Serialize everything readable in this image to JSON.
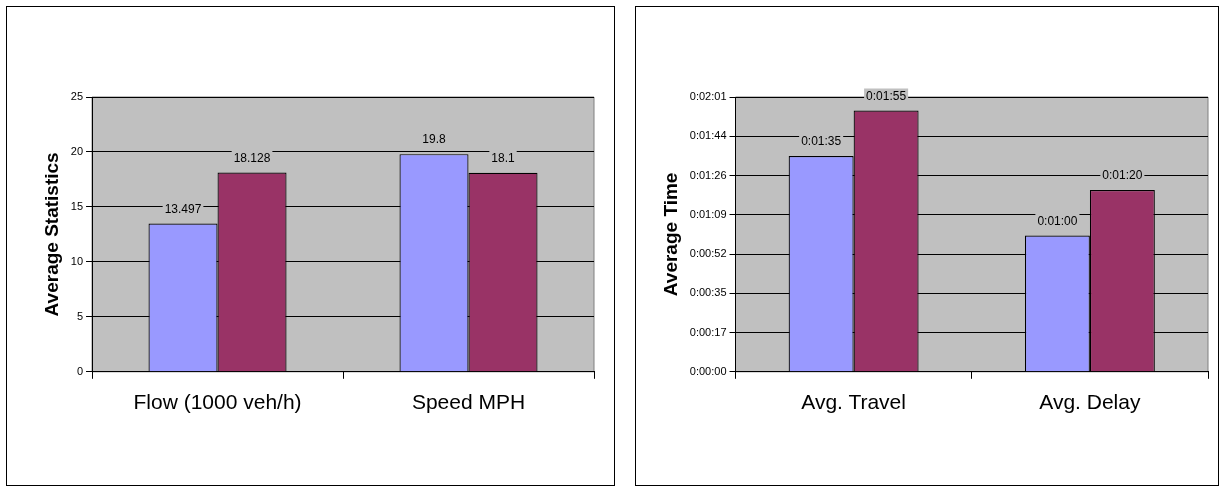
{
  "chart_data": [
    {
      "type": "bar",
      "ylabel": "Average Statistics",
      "categories": [
        "Flow (1000 veh/h)",
        "Speed MPH"
      ],
      "series": [
        {
          "color": "#9999ff",
          "values": [
            13.497,
            19.8
          ]
        },
        {
          "color": "#993366",
          "values": [
            18.128,
            18.1
          ]
        }
      ],
      "ylim": [
        0,
        25
      ],
      "yticks": [
        0,
        5,
        10,
        15,
        20,
        25
      ],
      "grid": "y",
      "legend": false,
      "data_labels": true
    },
    {
      "type": "bar",
      "ylabel": "Average Time",
      "categories": [
        "Avg. Travel",
        "Avg. Delay"
      ],
      "series": [
        {
          "color": "#9999ff",
          "values": [
            95,
            60
          ],
          "value_labels": [
            "0:01:35",
            "0:01:00"
          ]
        },
        {
          "color": "#993366",
          "values": [
            115,
            80
          ],
          "value_labels": [
            "0:01:55",
            "0:01:20"
          ]
        }
      ],
      "ylim": [
        0,
        120.96
      ],
      "yticks": [
        {
          "value": 0,
          "label": "0:00:00"
        },
        {
          "value": 17.28,
          "label": "0:00:17"
        },
        {
          "value": 34.56,
          "label": "0:00:35"
        },
        {
          "value": 51.84,
          "label": "0:00:52"
        },
        {
          "value": 69.12,
          "label": "0:01:09"
        },
        {
          "value": 86.4,
          "label": "0:01:26"
        },
        {
          "value": 103.68,
          "label": "0:01:44"
        },
        {
          "value": 120.96,
          "label": "0:02:01"
        }
      ],
      "grid": "y",
      "legend": false
    }
  ]
}
